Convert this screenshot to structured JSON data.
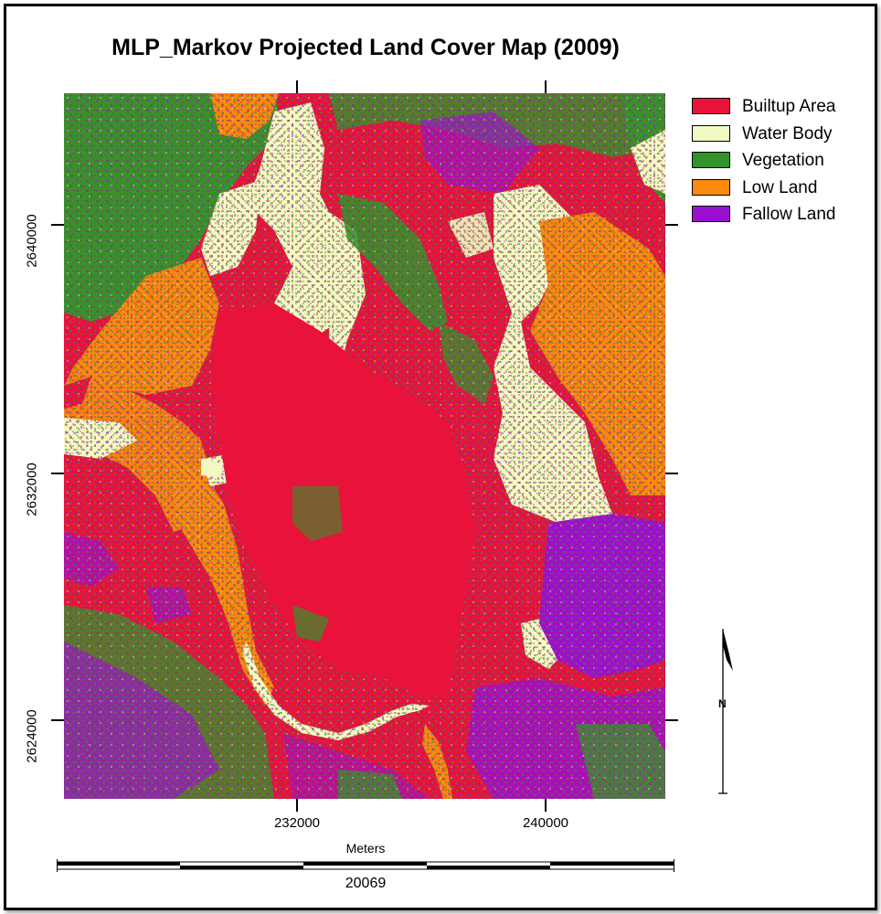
{
  "title": "MLP_Markov Projected Land Cover Map (2009)",
  "legend": [
    {
      "label": "Builtup Area",
      "color": "#e8123a"
    },
    {
      "label": "Water Body",
      "color": "#f2f9c2"
    },
    {
      "label": "Vegetation",
      "color": "#33932a"
    },
    {
      "label": "Low Land",
      "color": "#f98a0e"
    },
    {
      "label": "Fallow Land",
      "color": "#9b0fd1"
    }
  ],
  "y_axis": {
    "ticks": [
      "2640000",
      "2632000",
      "2624000"
    ]
  },
  "x_axis": {
    "ticks": [
      "232000",
      "240000"
    ],
    "label": "Meters"
  },
  "scale_bar": {
    "value": "20069"
  },
  "north_arrow": {
    "symbol": "N",
    "icon": "north-arrow-icon"
  }
}
